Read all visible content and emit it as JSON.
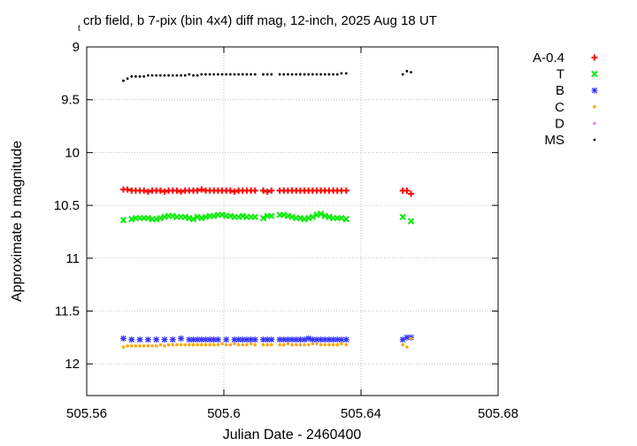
{
  "chart_data": {
    "type": "scatter",
    "title": "crb field, b 7-pix (bin 4x4) diff mag, 12-inch, 2025 Aug 18 UT",
    "title_prefix": "t",
    "xlabel": "Julian Date - 2460400",
    "ylabel": "Approximate b magnitude",
    "xlim": [
      505.56,
      505.68
    ],
    "ylim": [
      9,
      12.3
    ],
    "y_inverted": true,
    "grid": true,
    "legend_position": "top-right outside",
    "x_ticks": [
      505.56,
      505.6,
      505.64,
      505.68
    ],
    "x_tick_labels": [
      "505.56",
      "505.6",
      "505.64",
      "505.68"
    ],
    "y_ticks": [
      9,
      9.5,
      10,
      10.5,
      11,
      11.5,
      12
    ],
    "y_tick_labels": [
      "9",
      "9.5",
      "10",
      "10.5",
      "11",
      "11.5",
      "12"
    ],
    "series": [
      {
        "name": "A-0.4",
        "color": "#ff0000",
        "marker": "plus",
        "x": [
          505.5707,
          505.5719,
          505.5731,
          505.5743,
          505.5755,
          505.5767,
          505.5779,
          505.5791,
          505.5803,
          505.5815,
          505.5827,
          505.5839,
          505.5851,
          505.5863,
          505.5875,
          505.5887,
          505.5899,
          505.5911,
          505.5923,
          505.5935,
          505.5947,
          505.5959,
          505.5971,
          505.5983,
          505.5995,
          505.6007,
          505.6019,
          505.6031,
          505.6043,
          505.6055,
          505.6067,
          505.6079,
          505.6091,
          505.6115,
          505.6127,
          505.6139,
          505.6163,
          505.6175,
          505.6187,
          505.6199,
          505.6211,
          505.6223,
          505.6235,
          505.6247,
          505.6259,
          505.6271,
          505.6283,
          505.6295,
          505.6307,
          505.6319,
          505.6331,
          505.6343,
          505.6357,
          505.6522,
          505.6534,
          505.6546
        ],
        "y": [
          10.35,
          10.35,
          10.36,
          10.36,
          10.36,
          10.36,
          10.37,
          10.36,
          10.36,
          10.36,
          10.37,
          10.36,
          10.36,
          10.36,
          10.37,
          10.36,
          10.36,
          10.36,
          10.36,
          10.35,
          10.36,
          10.36,
          10.36,
          10.36,
          10.36,
          10.36,
          10.36,
          10.37,
          10.36,
          10.36,
          10.36,
          10.36,
          10.36,
          10.36,
          10.37,
          10.36,
          10.36,
          10.36,
          10.36,
          10.36,
          10.36,
          10.36,
          10.36,
          10.36,
          10.36,
          10.36,
          10.36,
          10.36,
          10.36,
          10.36,
          10.36,
          10.36,
          10.36,
          10.36,
          10.36,
          10.39
        ]
      },
      {
        "name": "T",
        "color": "#00ee00",
        "marker": "cross",
        "x": [
          505.5707,
          505.5731,
          505.5743,
          505.5755,
          505.5767,
          505.5779,
          505.5791,
          505.5803,
          505.5815,
          505.5827,
          505.5839,
          505.5851,
          505.5863,
          505.5875,
          505.5887,
          505.5899,
          505.5911,
          505.5923,
          505.5935,
          505.5947,
          505.5959,
          505.5971,
          505.5983,
          505.5995,
          505.6007,
          505.6019,
          505.6031,
          505.6043,
          505.6055,
          505.6067,
          505.6079,
          505.6091,
          505.6115,
          505.6127,
          505.6139,
          505.6163,
          505.6175,
          505.6187,
          505.6199,
          505.6211,
          505.6223,
          505.6235,
          505.6247,
          505.6259,
          505.6271,
          505.6283,
          505.6295,
          505.6307,
          505.6319,
          505.6331,
          505.6343,
          505.6357,
          505.6522,
          505.6546
        ],
        "y": [
          10.64,
          10.63,
          10.62,
          10.62,
          10.62,
          10.62,
          10.63,
          10.63,
          10.62,
          10.61,
          10.6,
          10.6,
          10.61,
          10.61,
          10.61,
          10.62,
          10.63,
          10.61,
          10.62,
          10.61,
          10.6,
          10.6,
          10.59,
          10.59,
          10.6,
          10.6,
          10.61,
          10.61,
          10.6,
          10.61,
          10.61,
          10.61,
          10.62,
          10.6,
          10.6,
          10.59,
          10.59,
          10.6,
          10.61,
          10.62,
          10.62,
          10.63,
          10.62,
          10.61,
          10.59,
          10.58,
          10.6,
          10.61,
          10.62,
          10.62,
          10.62,
          10.63,
          10.61,
          10.65
        ]
      },
      {
        "name": "B",
        "color": "#3333ff",
        "marker": "star",
        "x": [
          505.5707,
          505.5731,
          505.5755,
          505.5779,
          505.5803,
          505.5827,
          505.5851,
          505.5875,
          505.5899,
          505.5911,
          505.5923,
          505.5935,
          505.5947,
          505.5959,
          505.5971,
          505.5983,
          505.6007,
          505.6031,
          505.6043,
          505.6055,
          505.6067,
          505.6079,
          505.6091,
          505.6115,
          505.6127,
          505.6139,
          505.6163,
          505.6175,
          505.6187,
          505.6199,
          505.6211,
          505.6223,
          505.6235,
          505.6247,
          505.6259,
          505.6271,
          505.6283,
          505.6295,
          505.6307,
          505.6319,
          505.6331,
          505.6343,
          505.6357,
          505.6522,
          505.6534,
          505.6546
        ],
        "y": [
          11.76,
          11.77,
          11.77,
          11.77,
          11.77,
          11.77,
          11.77,
          11.76,
          11.77,
          11.77,
          11.77,
          11.77,
          11.77,
          11.77,
          11.77,
          11.77,
          11.77,
          11.77,
          11.77,
          11.77,
          11.77,
          11.77,
          11.77,
          11.77,
          11.77,
          11.77,
          11.77,
          11.77,
          11.77,
          11.77,
          11.77,
          11.77,
          11.77,
          11.76,
          11.77,
          11.77,
          11.77,
          11.77,
          11.77,
          11.77,
          11.77,
          11.77,
          11.77,
          11.77,
          11.75,
          11.75
        ]
      },
      {
        "name": "C",
        "color": "#ffa500",
        "marker": "square",
        "x": [
          505.5707,
          505.5719,
          505.5731,
          505.5743,
          505.5755,
          505.5767,
          505.5779,
          505.5791,
          505.5803,
          505.5815,
          505.5827,
          505.5839,
          505.5851,
          505.5863,
          505.5875,
          505.5887,
          505.5899,
          505.5911,
          505.5923,
          505.5935,
          505.5947,
          505.5959,
          505.5971,
          505.5983,
          505.5995,
          505.6007,
          505.6019,
          505.6031,
          505.6043,
          505.6055,
          505.6067,
          505.6079,
          505.6091,
          505.6115,
          505.6127,
          505.6139,
          505.6163,
          505.6175,
          505.6187,
          505.6199,
          505.6211,
          505.6223,
          505.6235,
          505.6247,
          505.6259,
          505.6271,
          505.6283,
          505.6295,
          505.6307,
          505.6319,
          505.6331,
          505.6343,
          505.6357,
          505.6522,
          505.6534,
          505.6546
        ],
        "y": [
          11.84,
          11.83,
          11.83,
          11.83,
          11.83,
          11.83,
          11.83,
          11.83,
          11.83,
          11.82,
          11.83,
          11.82,
          11.82,
          11.82,
          11.82,
          11.82,
          11.82,
          11.82,
          11.82,
          11.82,
          11.82,
          11.82,
          11.82,
          11.82,
          11.81,
          11.82,
          11.82,
          11.81,
          11.82,
          11.82,
          11.82,
          11.81,
          11.82,
          11.82,
          11.82,
          11.82,
          11.82,
          11.82,
          11.81,
          11.82,
          11.82,
          11.82,
          11.82,
          11.82,
          11.81,
          11.81,
          11.82,
          11.82,
          11.82,
          11.82,
          11.82,
          11.81,
          11.82,
          11.82,
          11.84,
          11.76
        ]
      },
      {
        "name": "D",
        "color": "#ee82ee",
        "marker": "square",
        "x": [],
        "y": []
      },
      {
        "name": "MS",
        "color": "#000000",
        "marker": "dot",
        "x": [
          505.5707,
          505.5719,
          505.5731,
          505.5743,
          505.5755,
          505.5767,
          505.5779,
          505.5791,
          505.5803,
          505.5815,
          505.5827,
          505.5839,
          505.5851,
          505.5863,
          505.5875,
          505.5887,
          505.5899,
          505.5911,
          505.5923,
          505.5935,
          505.5947,
          505.5959,
          505.5971,
          505.5983,
          505.5995,
          505.6007,
          505.6019,
          505.6031,
          505.6043,
          505.6055,
          505.6067,
          505.6079,
          505.6091,
          505.6115,
          505.6127,
          505.6139,
          505.6163,
          505.6175,
          505.6187,
          505.6199,
          505.6211,
          505.6223,
          505.6235,
          505.6247,
          505.6259,
          505.6271,
          505.6283,
          505.6295,
          505.6307,
          505.6319,
          505.6331,
          505.6343,
          505.6357,
          505.6522,
          505.6534,
          505.6546
        ],
        "y": [
          9.32,
          9.3,
          9.28,
          9.28,
          9.28,
          9.28,
          9.27,
          9.27,
          9.27,
          9.27,
          9.27,
          9.27,
          9.27,
          9.27,
          9.27,
          9.27,
          9.26,
          9.27,
          9.27,
          9.26,
          9.26,
          9.26,
          9.26,
          9.26,
          9.26,
          9.26,
          9.26,
          9.26,
          9.26,
          9.26,
          9.26,
          9.26,
          9.26,
          9.26,
          9.26,
          9.26,
          9.26,
          9.26,
          9.26,
          9.26,
          9.26,
          9.26,
          9.26,
          9.26,
          9.26,
          9.26,
          9.26,
          9.26,
          9.26,
          9.26,
          9.26,
          9.25,
          9.25,
          9.26,
          9.23,
          9.24
        ]
      }
    ]
  }
}
